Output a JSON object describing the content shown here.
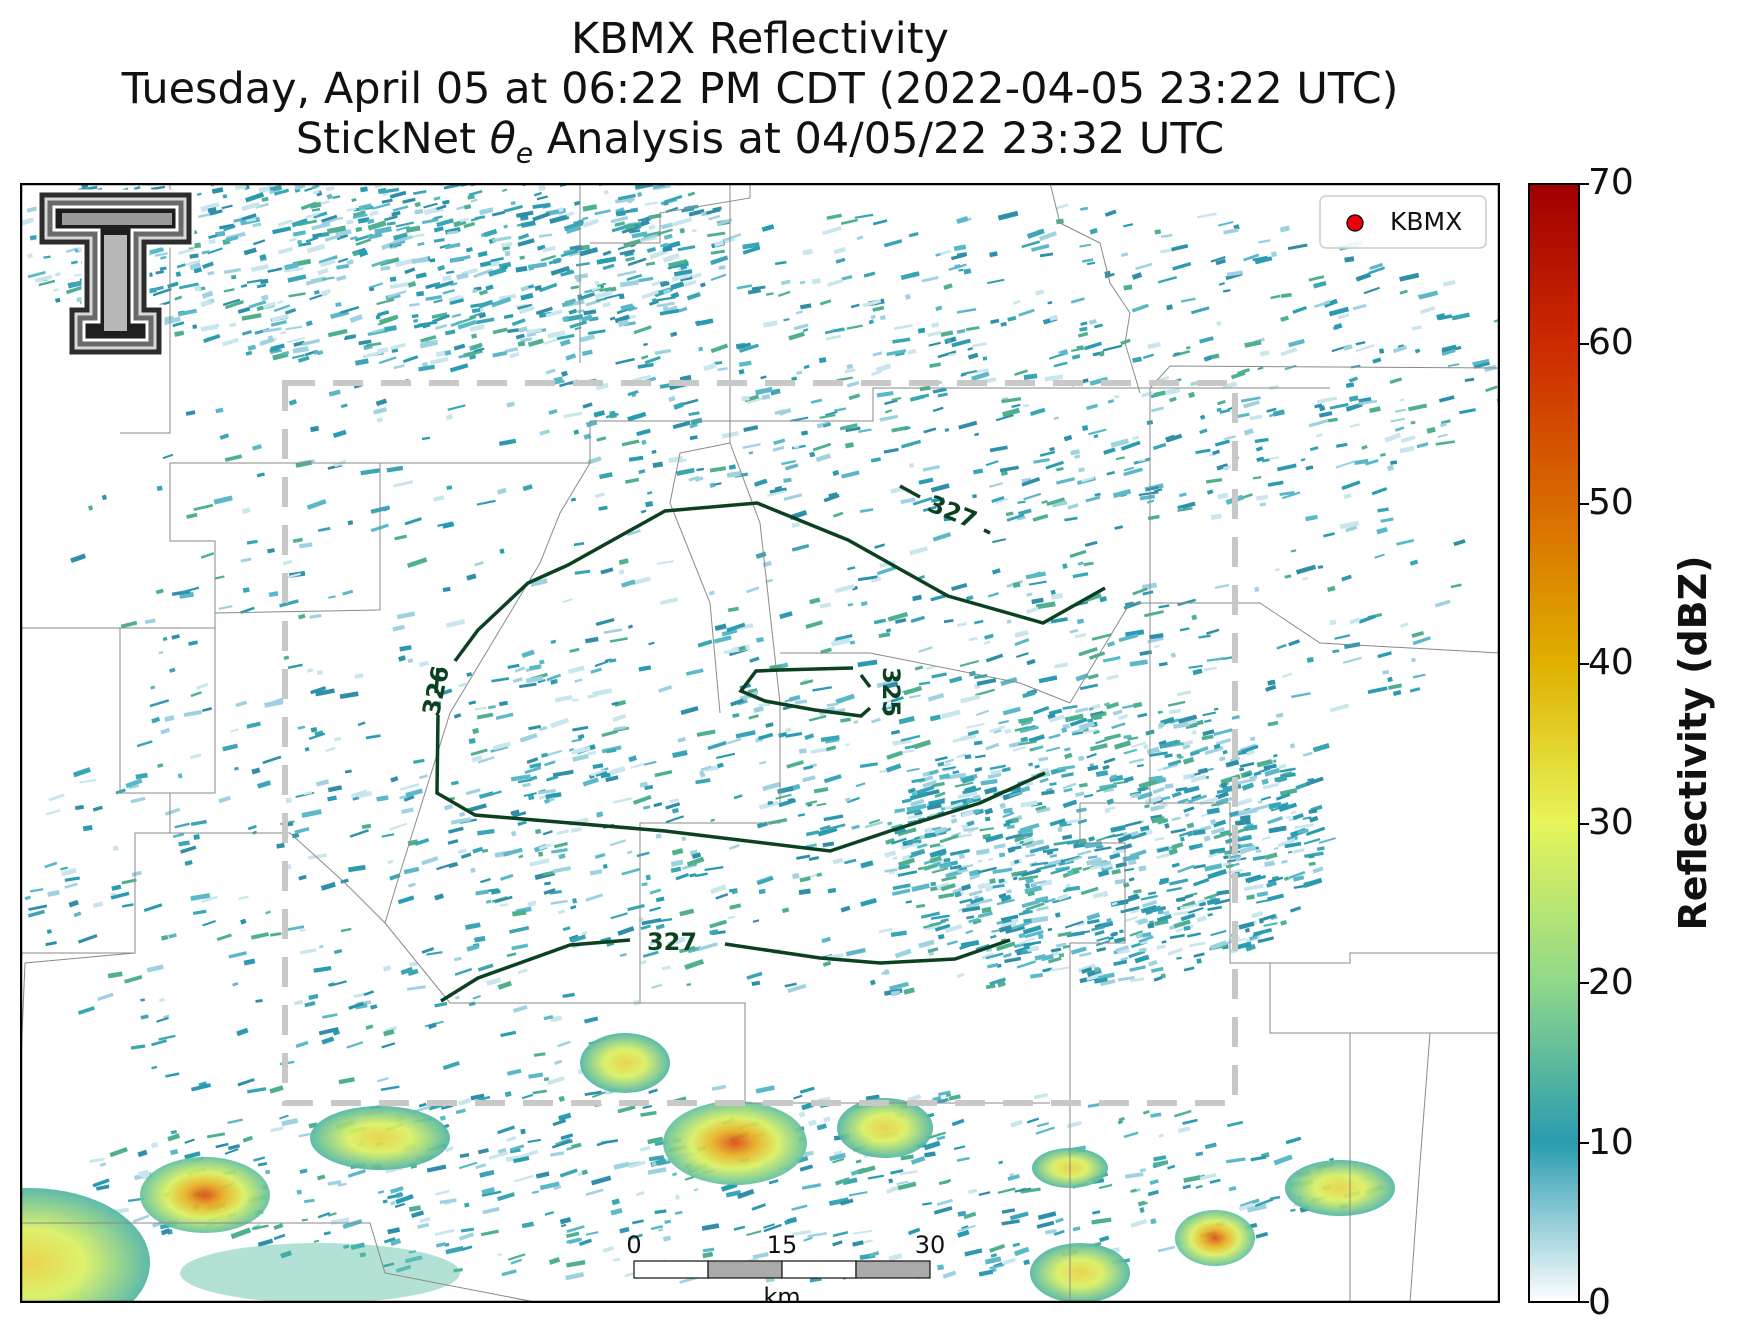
{
  "title": {
    "line1": "KBMX Reflectivity",
    "line2": "Tuesday, April 05 at 06:22 PM CDT (2022-04-05 23:22 UTC)",
    "line3_prefix": "StickNet ",
    "line3_symbol": "θ",
    "line3_sub": "e",
    "line3_suffix": " Analysis at 04/05/22 23:32 UTC"
  },
  "legend": {
    "label": "KBMX",
    "marker_color": "#e8000b"
  },
  "colors": {
    "contour": "#0b4020",
    "analysis_box": "#c8c8c8",
    "county_lines": "#8a8a8a"
  },
  "contours": [
    {
      "label": "326"
    },
    {
      "label": "325"
    },
    {
      "label": "327"
    },
    {
      "label": "327"
    }
  ],
  "scale_bar": {
    "tick_labels": [
      "0",
      "15",
      "30"
    ],
    "unit": "km"
  },
  "colorbar": {
    "label": "Reflectivity (dBZ)",
    "ticks": [
      "0",
      "10",
      "20",
      "30",
      "40",
      "50",
      "60",
      "70"
    ],
    "range": [
      0,
      70
    ],
    "stops": [
      "#ffffff",
      "#2a9bb0",
      "#8fd88a",
      "#e6f55a",
      "#e0b000",
      "#d86a00",
      "#cc2a00",
      "#a00000"
    ]
  },
  "logo": {
    "name": "Texas Tech Double T"
  }
}
